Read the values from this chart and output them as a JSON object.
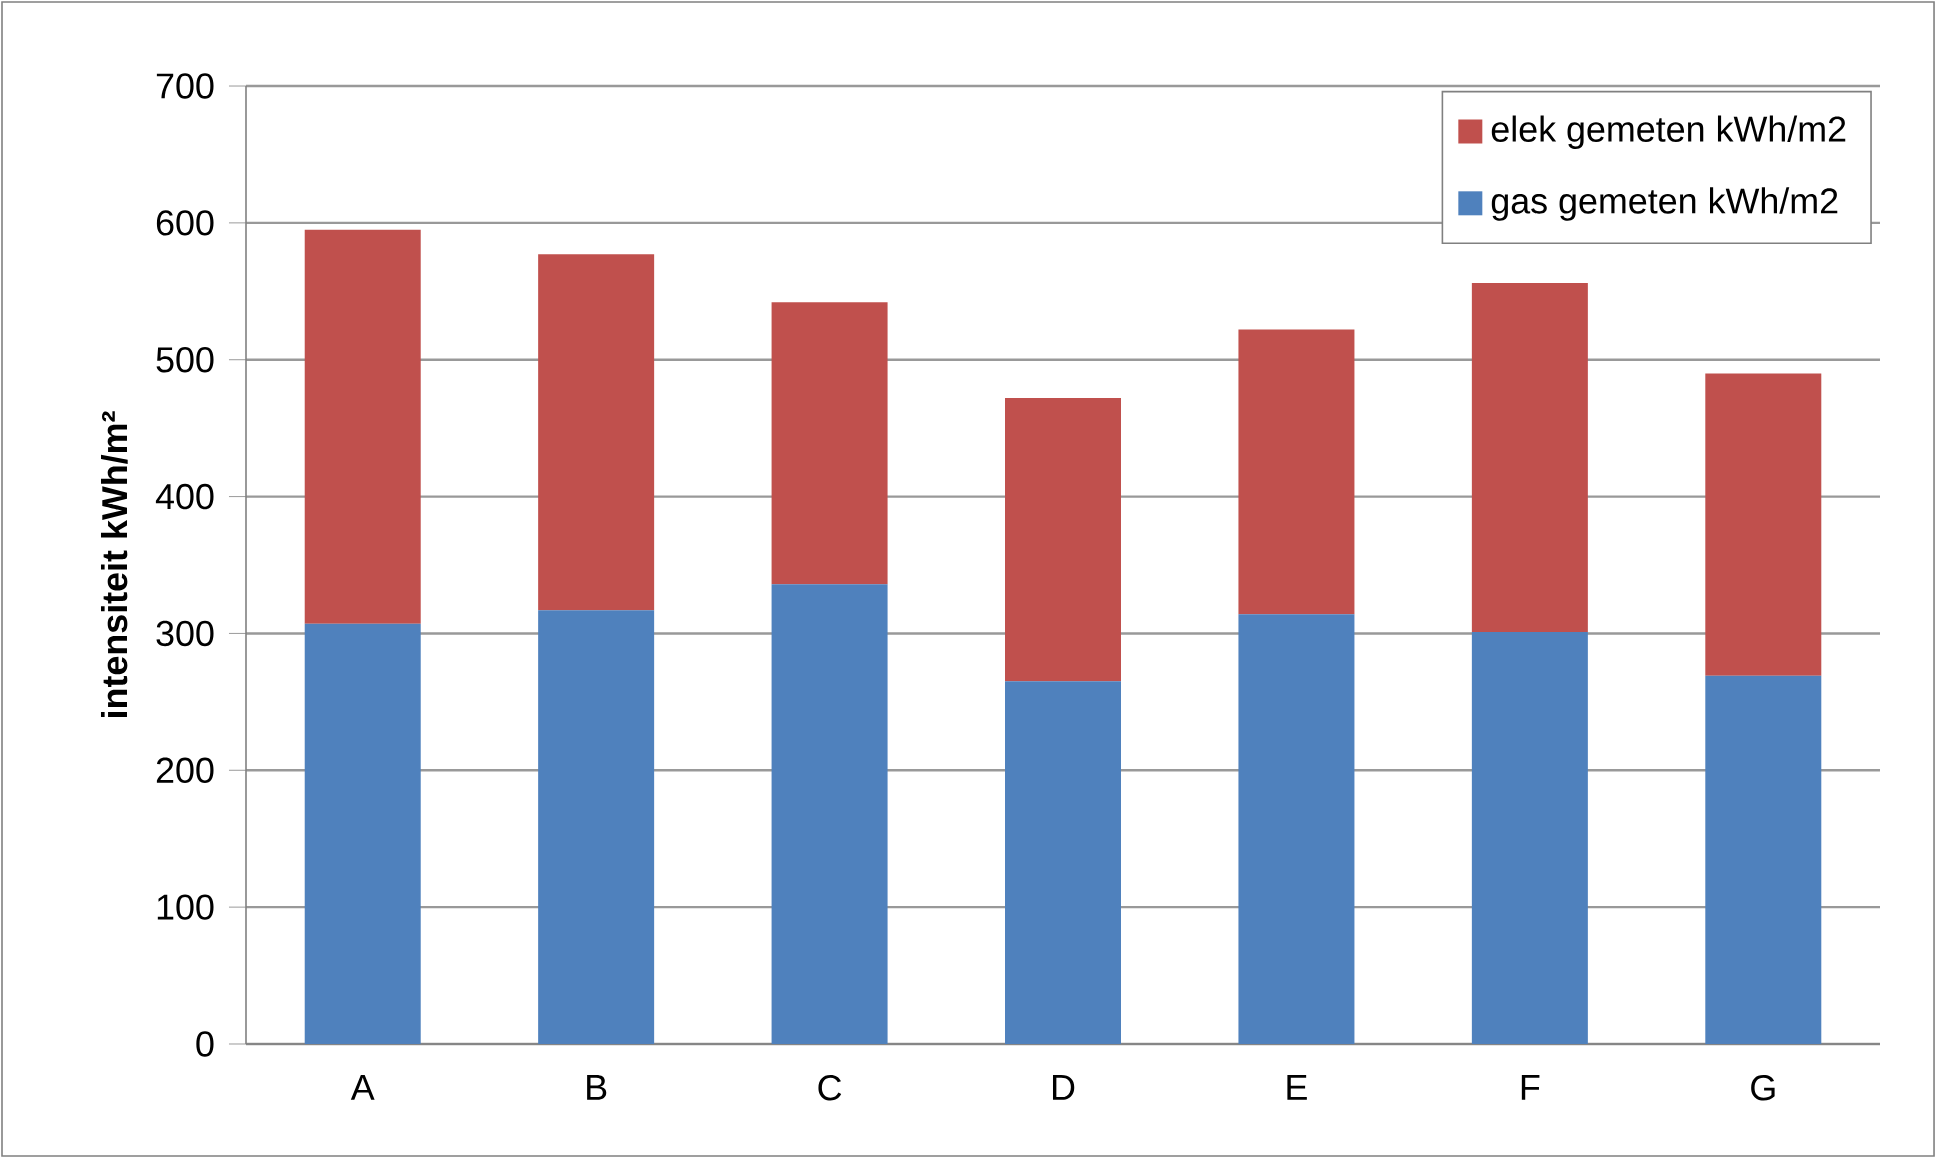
{
  "chart_data": {
    "type": "bar",
    "stacked": true,
    "ylabel": "intensiteit kWh/m²",
    "categories": [
      "A",
      "B",
      "C",
      "D",
      "E",
      "F",
      "G"
    ],
    "series": [
      {
        "name": "gas gemeten kWh/m2",
        "color": "#4f81bd",
        "values": [
          307,
          317,
          336,
          265,
          314,
          301,
          269
        ]
      },
      {
        "name": "elek gemeten kWh/m2",
        "color": "#c0504d",
        "values": [
          288,
          260,
          206,
          207,
          208,
          255,
          221
        ]
      }
    ],
    "ylim": [
      0,
      700
    ],
    "yticks": [
      0,
      100,
      200,
      300,
      400,
      500,
      600,
      700
    ],
    "grid": "y",
    "legend": "top right"
  }
}
